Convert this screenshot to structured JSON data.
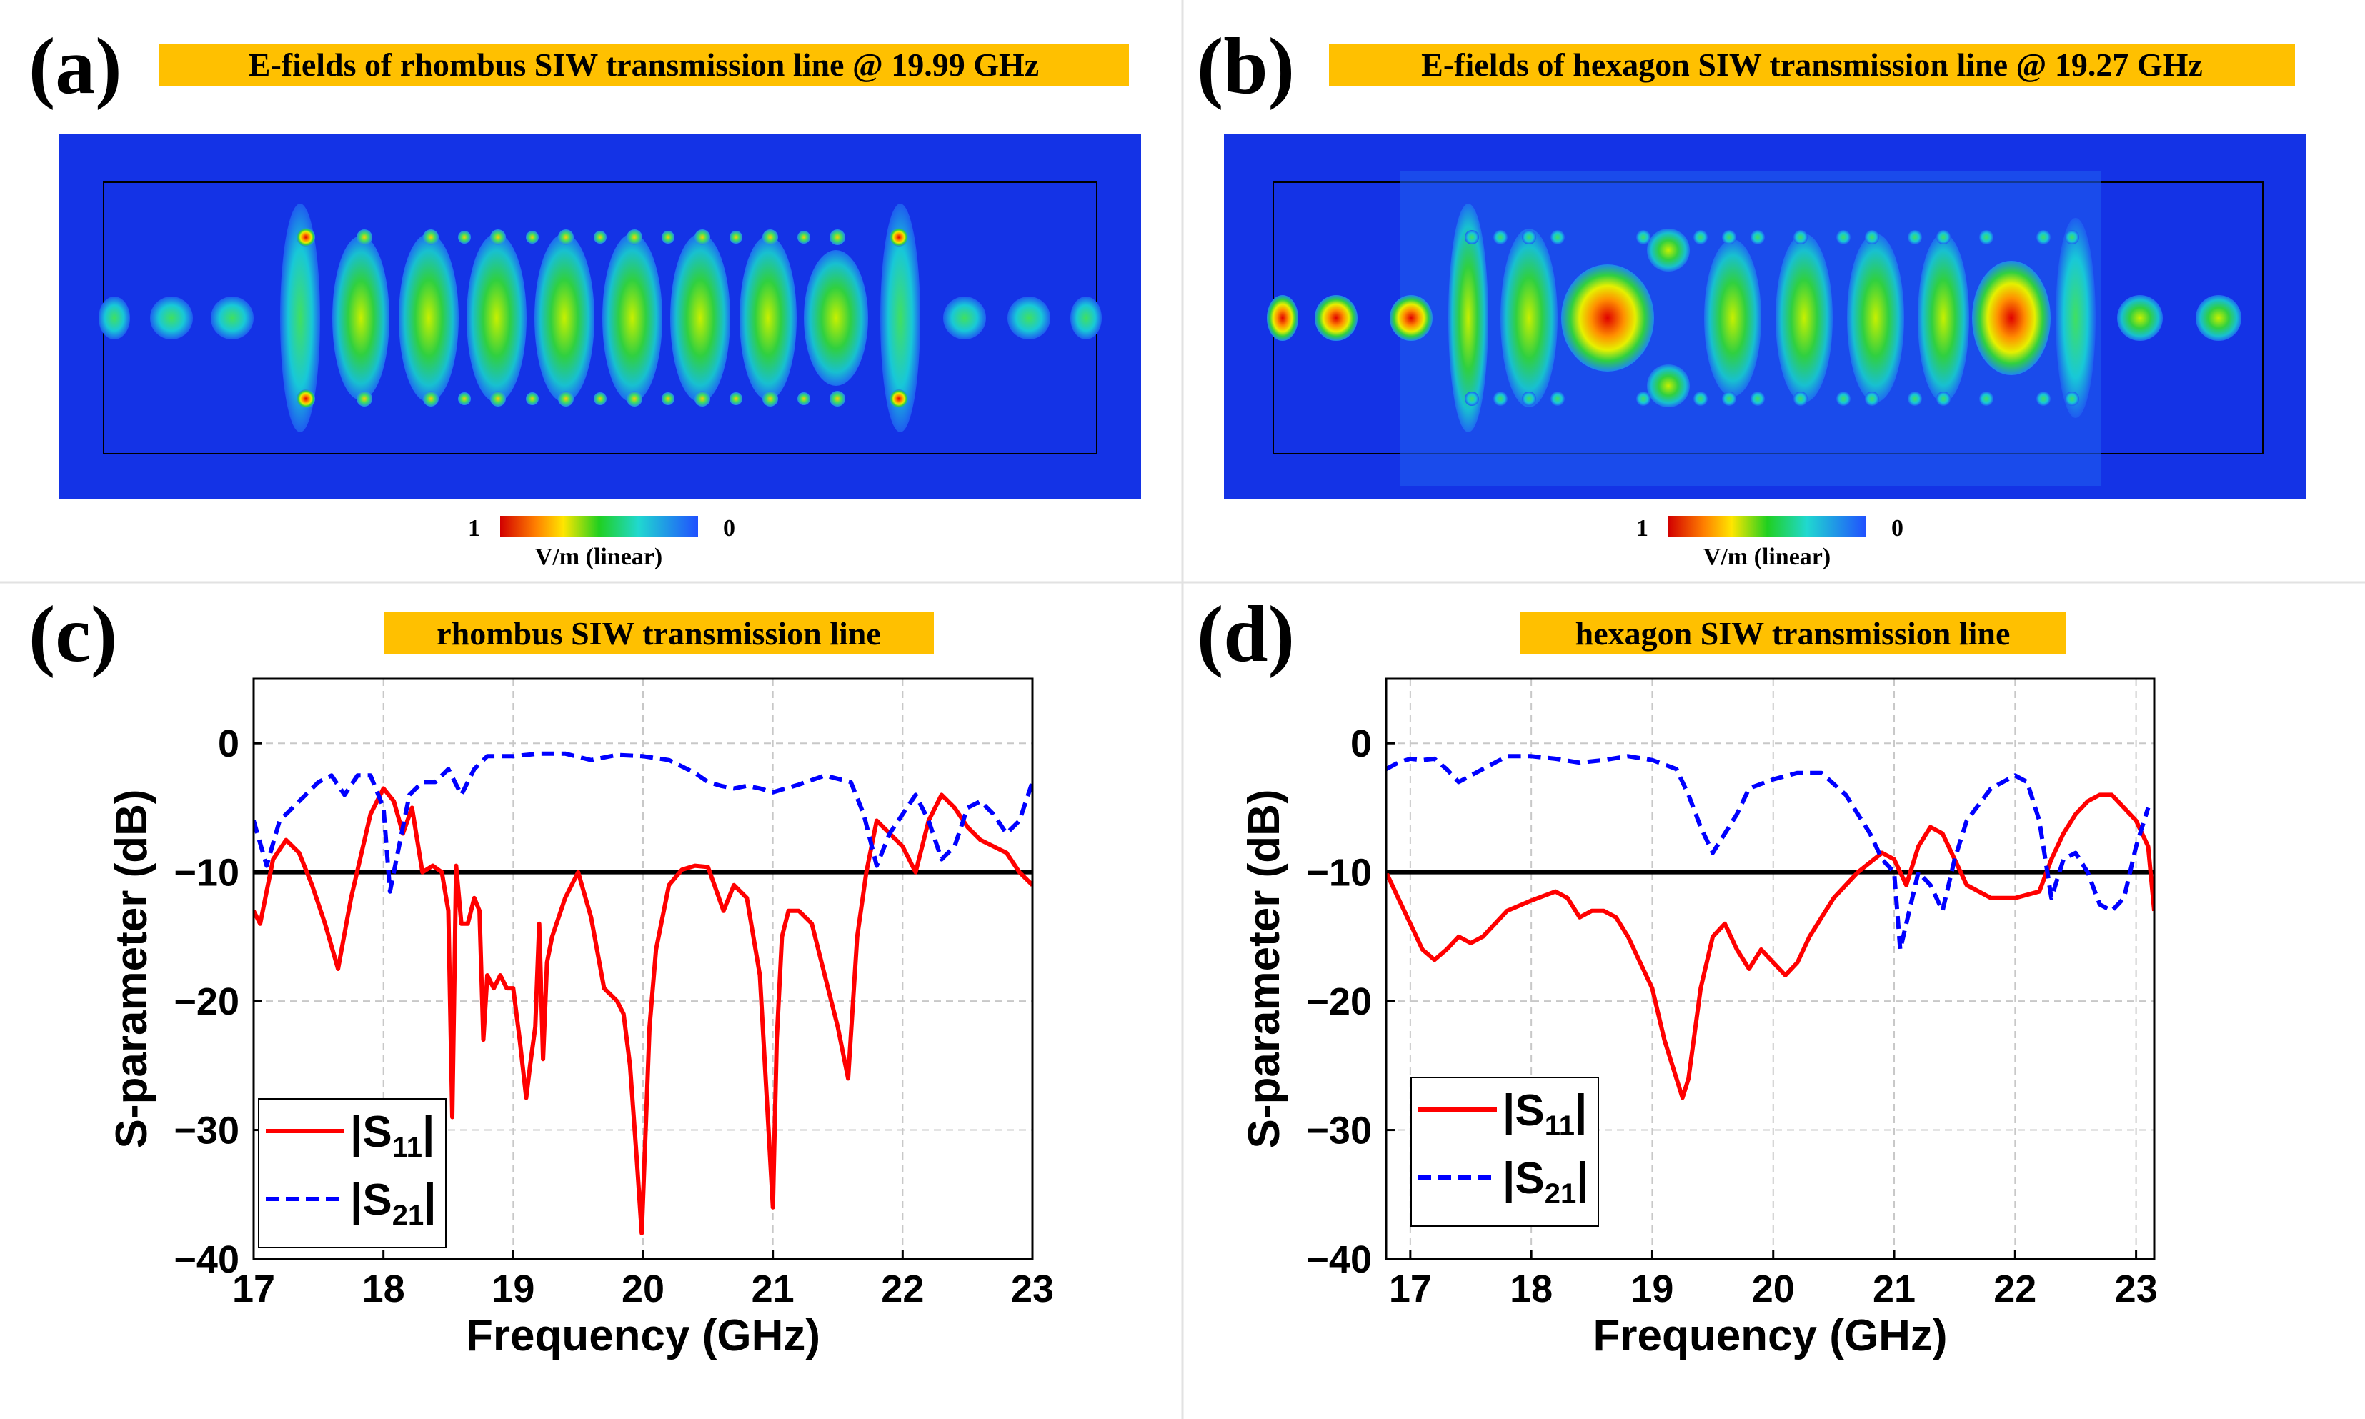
{
  "panels": {
    "a": {
      "letter": "(a)",
      "title": "E-fields of rhombus SIW transmission line @ 19.99 GHz"
    },
    "b": {
      "letter": "(b)",
      "title": "E-fields of hexagon SIW transmission line @ 19.27 GHz"
    },
    "c": {
      "letter": "(c)",
      "title": "rhombus SIW transmission line"
    },
    "d": {
      "letter": "(d)",
      "title": "hexagon SIW transmission line"
    }
  },
  "colorbar": {
    "max_label": "1",
    "min_label": "0",
    "unit": "V/m (linear)"
  },
  "colors": {
    "banner": "#FFC000",
    "field_bg": "#1433E6",
    "s11": "#FF0000",
    "s21": "#0000FF",
    "threshold": "#000000"
  },
  "legend": {
    "s11": {
      "pre": "|S",
      "sub": "11",
      "post": "|"
    },
    "s21": {
      "pre": "|S",
      "sub": "21",
      "post": "|"
    }
  },
  "chart_data": [
    {
      "type": "line",
      "title": "rhombus SIW transmission line",
      "xlabel": "Frequency (GHz)",
      "ylabel": "S-parameter (dB)",
      "xlim": [
        17,
        23
      ],
      "ylim": [
        -40,
        5
      ],
      "xticks": [
        17,
        18,
        19,
        20,
        21,
        22,
        23
      ],
      "yticks": [
        0,
        -10,
        -20,
        -30,
        -40
      ],
      "ytick_labels": [
        "0",
        "−10",
        "−20",
        "−30",
        "−40"
      ],
      "threshold": -10,
      "grid": true,
      "legend_position": "bottom-left",
      "series": [
        {
          "name": "|S11|",
          "style": "solid",
          "x": [
            17.0,
            17.05,
            17.15,
            17.25,
            17.35,
            17.45,
            17.55,
            17.65,
            17.75,
            17.9,
            18.0,
            18.08,
            18.15,
            18.22,
            18.3,
            18.38,
            18.45,
            18.5,
            18.53,
            18.56,
            18.6,
            18.65,
            18.7,
            18.74,
            18.77,
            18.8,
            18.85,
            18.9,
            18.95,
            19.0,
            19.05,
            19.1,
            19.13,
            19.17,
            19.2,
            19.23,
            19.26,
            19.3,
            19.4,
            19.5,
            19.6,
            19.7,
            19.8,
            19.85,
            19.9,
            19.95,
            19.99,
            20.05,
            20.1,
            20.2,
            20.3,
            20.4,
            20.5,
            20.55,
            20.62,
            20.7,
            20.8,
            20.9,
            20.95,
            21.0,
            21.03,
            21.07,
            21.12,
            21.2,
            21.3,
            21.4,
            21.5,
            21.58,
            21.65,
            21.72,
            21.8,
            21.9,
            22.0,
            22.1,
            22.2,
            22.3,
            22.4,
            22.5,
            22.6,
            22.7,
            22.8,
            22.9,
            23.0
          ],
          "y": [
            -13,
            -14,
            -9,
            -7.5,
            -8.5,
            -11,
            -14,
            -17.5,
            -12,
            -5.5,
            -3.5,
            -4.5,
            -7,
            -5,
            -10,
            -9.5,
            -10,
            -13,
            -29,
            -9.5,
            -14,
            -14,
            -12,
            -13,
            -23,
            -18,
            -19,
            -18,
            -19,
            -19,
            -23,
            -27.5,
            -25,
            -22,
            -14,
            -24.5,
            -17,
            -15,
            -12,
            -10,
            -13.5,
            -19,
            -20,
            -21,
            -25,
            -32,
            -38,
            -22,
            -16,
            -11,
            -9.8,
            -9.5,
            -9.6,
            -11,
            -13,
            -11,
            -12,
            -18,
            -27,
            -36,
            -23,
            -15,
            -13,
            -13,
            -14,
            -18,
            -22,
            -26,
            -15,
            -10,
            -6,
            -7,
            -8,
            -10,
            -6,
            -4,
            -5,
            -6.5,
            -7.5,
            -8,
            -8.5,
            -10,
            -11
          ]
        },
        {
          "name": "|S21|",
          "style": "dashed",
          "x": [
            17.0,
            17.1,
            17.2,
            17.3,
            17.4,
            17.5,
            17.6,
            17.7,
            17.8,
            17.9,
            18.0,
            18.05,
            18.1,
            18.2,
            18.3,
            18.4,
            18.5,
            18.6,
            18.7,
            18.8,
            18.9,
            19.0,
            19.2,
            19.4,
            19.6,
            19.8,
            20.0,
            20.2,
            20.4,
            20.5,
            20.6,
            20.7,
            20.8,
            20.9,
            21.0,
            21.1,
            21.2,
            21.4,
            21.6,
            21.7,
            21.8,
            21.9,
            22.0,
            22.1,
            22.2,
            22.3,
            22.4,
            22.5,
            22.6,
            22.7,
            22.8,
            22.9,
            23.0
          ],
          "y": [
            -6,
            -9.5,
            -6,
            -5,
            -4,
            -3,
            -2.5,
            -4,
            -2.5,
            -2.5,
            -5,
            -11.5,
            -9,
            -4,
            -3,
            -3,
            -2,
            -4,
            -2,
            -1,
            -1,
            -1,
            -0.8,
            -0.8,
            -1.3,
            -0.9,
            -1,
            -1.3,
            -2.3,
            -3,
            -3.3,
            -3.5,
            -3.3,
            -3.5,
            -3.8,
            -3.5,
            -3.2,
            -2.5,
            -3,
            -5.5,
            -9.5,
            -7,
            -5.5,
            -4,
            -6,
            -9,
            -8,
            -5,
            -4.5,
            -5.5,
            -7,
            -6,
            -3
          ]
        }
      ]
    },
    {
      "type": "line",
      "title": "hexagon SIW transmission line",
      "xlabel": "Frequency (GHz)",
      "ylabel": "S-parameter (dB)",
      "xlim": [
        16.8,
        23.15
      ],
      "ylim": [
        -40,
        5
      ],
      "xticks": [
        17,
        18,
        19,
        20,
        21,
        22,
        23
      ],
      "yticks": [
        0,
        -10,
        -20,
        -30,
        -40
      ],
      "ytick_labels": [
        "0",
        "−10",
        "−20",
        "−30",
        "−40"
      ],
      "threshold": -10,
      "grid": true,
      "legend_position": "bottom-left",
      "series": [
        {
          "name": "|S11|",
          "style": "solid",
          "x": [
            16.8,
            16.9,
            17.0,
            17.1,
            17.2,
            17.3,
            17.4,
            17.5,
            17.6,
            17.8,
            18.0,
            18.2,
            18.3,
            18.4,
            18.5,
            18.6,
            18.7,
            18.8,
            18.9,
            19.0,
            19.1,
            19.2,
            19.25,
            19.3,
            19.4,
            19.5,
            19.6,
            19.7,
            19.8,
            19.9,
            20.0,
            20.1,
            20.2,
            20.3,
            20.5,
            20.7,
            20.9,
            21.0,
            21.1,
            21.2,
            21.3,
            21.4,
            21.5,
            21.6,
            21.8,
            22.0,
            22.2,
            22.3,
            22.4,
            22.5,
            22.6,
            22.7,
            22.8,
            22.9,
            23.0,
            23.1,
            23.15
          ],
          "y": [
            -10,
            -12,
            -14,
            -16,
            -16.8,
            -16,
            -15,
            -15.5,
            -15,
            -13,
            -12.2,
            -11.5,
            -12,
            -13.5,
            -13,
            -13,
            -13.5,
            -15,
            -17,
            -19,
            -23,
            -26,
            -27.5,
            -26,
            -19,
            -15,
            -14,
            -16,
            -17.5,
            -16,
            -17,
            -18,
            -17,
            -15,
            -12,
            -10,
            -8.5,
            -9,
            -11,
            -8,
            -6.5,
            -7,
            -9,
            -11,
            -12,
            -12,
            -11.5,
            -9,
            -7,
            -5.5,
            -4.5,
            -4,
            -4,
            -5,
            -6,
            -8,
            -13
          ]
        },
        {
          "name": "|S21|",
          "style": "dashed",
          "x": [
            16.8,
            16.9,
            17.0,
            17.1,
            17.2,
            17.3,
            17.4,
            17.6,
            17.8,
            18.0,
            18.2,
            18.4,
            18.6,
            18.8,
            19.0,
            19.2,
            19.3,
            19.4,
            19.5,
            19.6,
            19.7,
            19.8,
            20.0,
            20.2,
            20.4,
            20.6,
            20.8,
            20.9,
            21.0,
            21.05,
            21.1,
            21.2,
            21.3,
            21.4,
            21.5,
            21.6,
            21.8,
            22.0,
            22.1,
            22.2,
            22.3,
            22.4,
            22.5,
            22.6,
            22.7,
            22.8,
            22.9,
            23.0,
            23.1
          ],
          "y": [
            -2,
            -1.5,
            -1.2,
            -1.3,
            -1.2,
            -2,
            -3,
            -2,
            -1,
            -1,
            -1.2,
            -1.5,
            -1.3,
            -1,
            -1.3,
            -2,
            -4,
            -6.5,
            -8.5,
            -7,
            -5.5,
            -3.5,
            -2.8,
            -2.3,
            -2.3,
            -4,
            -7,
            -9,
            -10,
            -16,
            -14,
            -10,
            -11,
            -13,
            -9,
            -6,
            -3.5,
            -2.5,
            -3,
            -6,
            -12,
            -9,
            -8.5,
            -10,
            -12.5,
            -13,
            -12,
            -8,
            -5
          ]
        }
      ]
    }
  ]
}
